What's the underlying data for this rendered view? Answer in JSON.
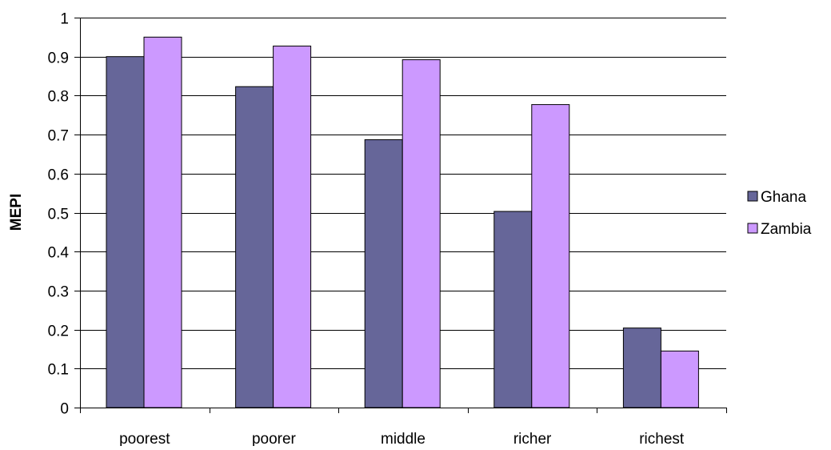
{
  "chart_data": {
    "type": "bar",
    "title": "",
    "xlabel": "",
    "ylabel": "MEPI",
    "categories": [
      "poorest",
      "poorer",
      "middle",
      "richer",
      "richest"
    ],
    "series": [
      {
        "name": "Ghana",
        "values": [
          0.9,
          0.823,
          0.687,
          0.503,
          0.204
        ],
        "color": "#666699"
      },
      {
        "name": "Zambia",
        "values": [
          0.95,
          0.927,
          0.892,
          0.777,
          0.145
        ],
        "color": "#CC99FF"
      }
    ],
    "ylim": [
      0,
      1
    ],
    "yticks": [
      "0",
      "0.1",
      "0.2",
      "0.3",
      "0.4",
      "0.5",
      "0.6",
      "0.7",
      "0.8",
      "0.9",
      "1"
    ],
    "grid": true,
    "legend": "right"
  }
}
